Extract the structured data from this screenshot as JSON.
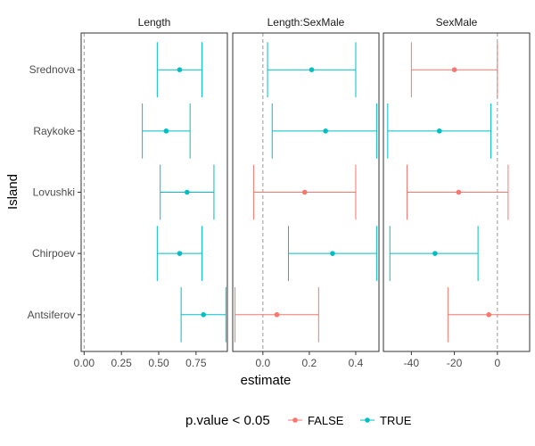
{
  "chart_data": {
    "type": "errorbar",
    "xlabel": "estimate",
    "ylabel": "Island",
    "categories": [
      "Srednova",
      "Raykoke",
      "Lovushki",
      "Chirpoev",
      "Antsiferov"
    ],
    "legend": {
      "title": "p.value < 0.05",
      "entries": [
        {
          "label": "FALSE",
          "color": "#F8766D"
        },
        {
          "label": "TRUE",
          "color": "#00BFC4"
        }
      ]
    },
    "colors": {
      "FALSE": "#F8766D",
      "TRUE": "#00BFC4"
    },
    "panels": [
      {
        "title": "Length",
        "xlim": [
          -0.02,
          0.96
        ],
        "xticks": [
          0.0,
          0.25,
          0.5,
          0.75
        ],
        "xtick_labels": [
          "0.00",
          "0.25",
          "0.50",
          "0.75"
        ],
        "ref_line": 0,
        "points": [
          {
            "island": "Srednova",
            "estimate": 0.64,
            "low": 0.49,
            "high": 0.79,
            "significant": "TRUE"
          },
          {
            "island": "Raykoke",
            "estimate": 0.55,
            "low": 0.39,
            "high": 0.71,
            "significant": "TRUE"
          },
          {
            "island": "Lovushki",
            "estimate": 0.69,
            "low": 0.51,
            "high": 0.87,
            "significant": "TRUE"
          },
          {
            "island": "Chirpoev",
            "estimate": 0.64,
            "low": 0.49,
            "high": 0.79,
            "significant": "TRUE"
          },
          {
            "island": "Antsiferov",
            "estimate": 0.8,
            "low": 0.65,
            "high": 0.95,
            "significant": "TRUE"
          }
        ]
      },
      {
        "title": "Length:SexMale",
        "xlim": [
          -0.13,
          0.5
        ],
        "xticks": [
          0.0,
          0.2,
          0.4
        ],
        "xtick_labels": [
          "0.0",
          "0.2",
          "0.4"
        ],
        "ref_line": 0,
        "points": [
          {
            "island": "Srednova",
            "estimate": 0.21,
            "low": 0.02,
            "high": 0.4,
            "significant": "TRUE"
          },
          {
            "island": "Raykoke",
            "estimate": 0.27,
            "low": 0.04,
            "high": 0.49,
            "significant": "TRUE"
          },
          {
            "island": "Lovushki",
            "estimate": 0.18,
            "low": -0.04,
            "high": 0.4,
            "significant": "FALSE"
          },
          {
            "island": "Chirpoev",
            "estimate": 0.3,
            "low": 0.11,
            "high": 0.49,
            "significant": "TRUE"
          },
          {
            "island": "Antsiferov",
            "estimate": 0.06,
            "low": -0.12,
            "high": 0.24,
            "significant": "FALSE"
          }
        ]
      },
      {
        "title": "SexMale",
        "xlim": [
          -53,
          15
        ],
        "xticks": [
          -40,
          -20,
          0
        ],
        "xtick_labels": [
          "-40",
          "-20",
          "0"
        ],
        "ref_line": 0,
        "points": [
          {
            "island": "Srednova",
            "estimate": -20,
            "low": -40,
            "high": 0,
            "significant": "FALSE"
          },
          {
            "island": "Raykoke",
            "estimate": -27,
            "low": -51,
            "high": -3,
            "significant": "TRUE"
          },
          {
            "island": "Lovushki",
            "estimate": -18,
            "low": -42,
            "high": 5,
            "significant": "FALSE"
          },
          {
            "island": "Chirpoev",
            "estimate": -29,
            "low": -50,
            "high": -9,
            "significant": "TRUE"
          },
          {
            "island": "Antsiferov",
            "estimate": -4,
            "low": -23,
            "high": 15,
            "significant": "FALSE"
          }
        ]
      }
    ]
  }
}
